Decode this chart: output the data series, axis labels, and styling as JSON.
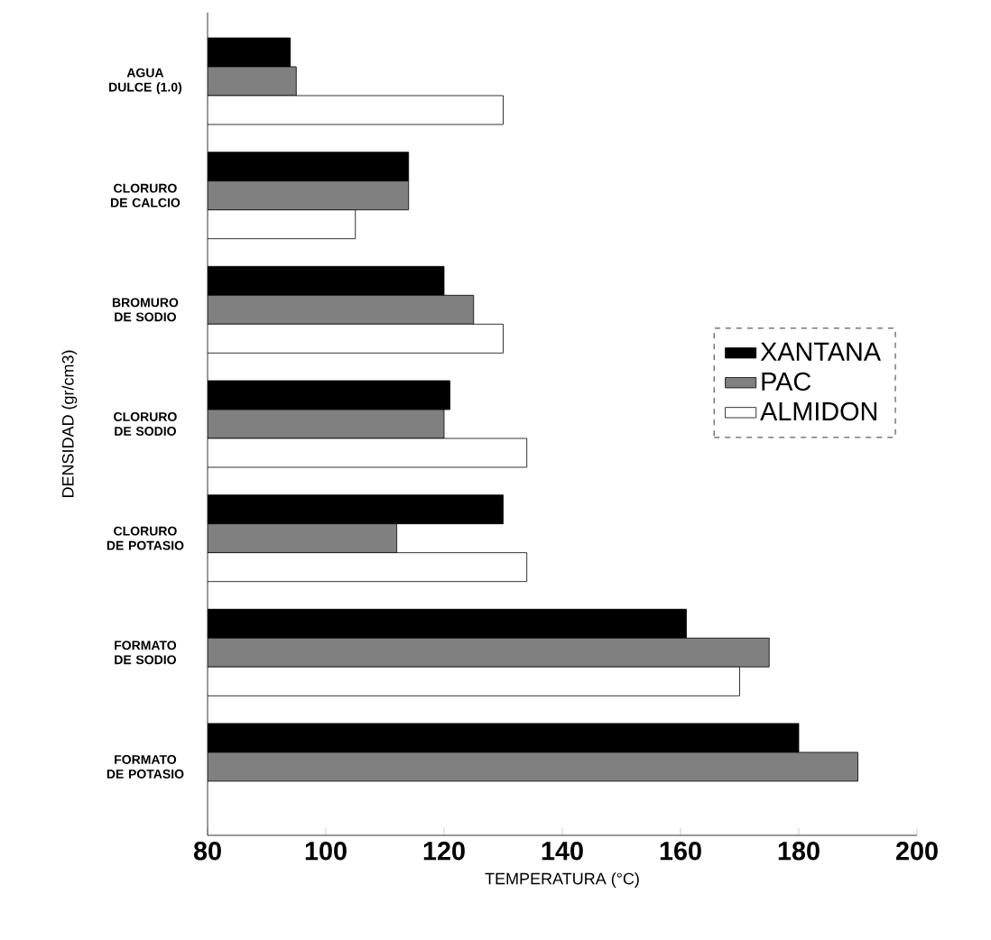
{
  "chart_data": {
    "type": "bar",
    "orientation": "horizontal",
    "xlabel": "TEMPERATURA (°C)",
    "ylabel": "DENSIDAD (gr/cm3)",
    "categories": [
      "AGUA DULCE (1.0)",
      "CLORURO DE CALCIO",
      "BROMURO DE SODIO",
      "CLORURO DE SODIO",
      "CLORURO DE POTASIO",
      "FORMATO DE SODIO",
      "FORMATO DE POTASIO"
    ],
    "series": [
      {
        "name": "XANTANA",
        "color": "#000000",
        "values": [
          94,
          114,
          120,
          121,
          130,
          161,
          180
        ]
      },
      {
        "name": "PAC",
        "color": "#808080",
        "values": [
          95,
          114,
          125,
          120,
          112,
          175,
          190
        ]
      },
      {
        "name": "ALMIDON",
        "color": "#ffffff",
        "values": [
          130,
          105,
          130,
          134,
          134,
          170,
          null
        ]
      }
    ],
    "xlim": [
      80,
      200
    ],
    "xticks": [
      80,
      100,
      120,
      140,
      160,
      180,
      200
    ],
    "legend": "right"
  }
}
